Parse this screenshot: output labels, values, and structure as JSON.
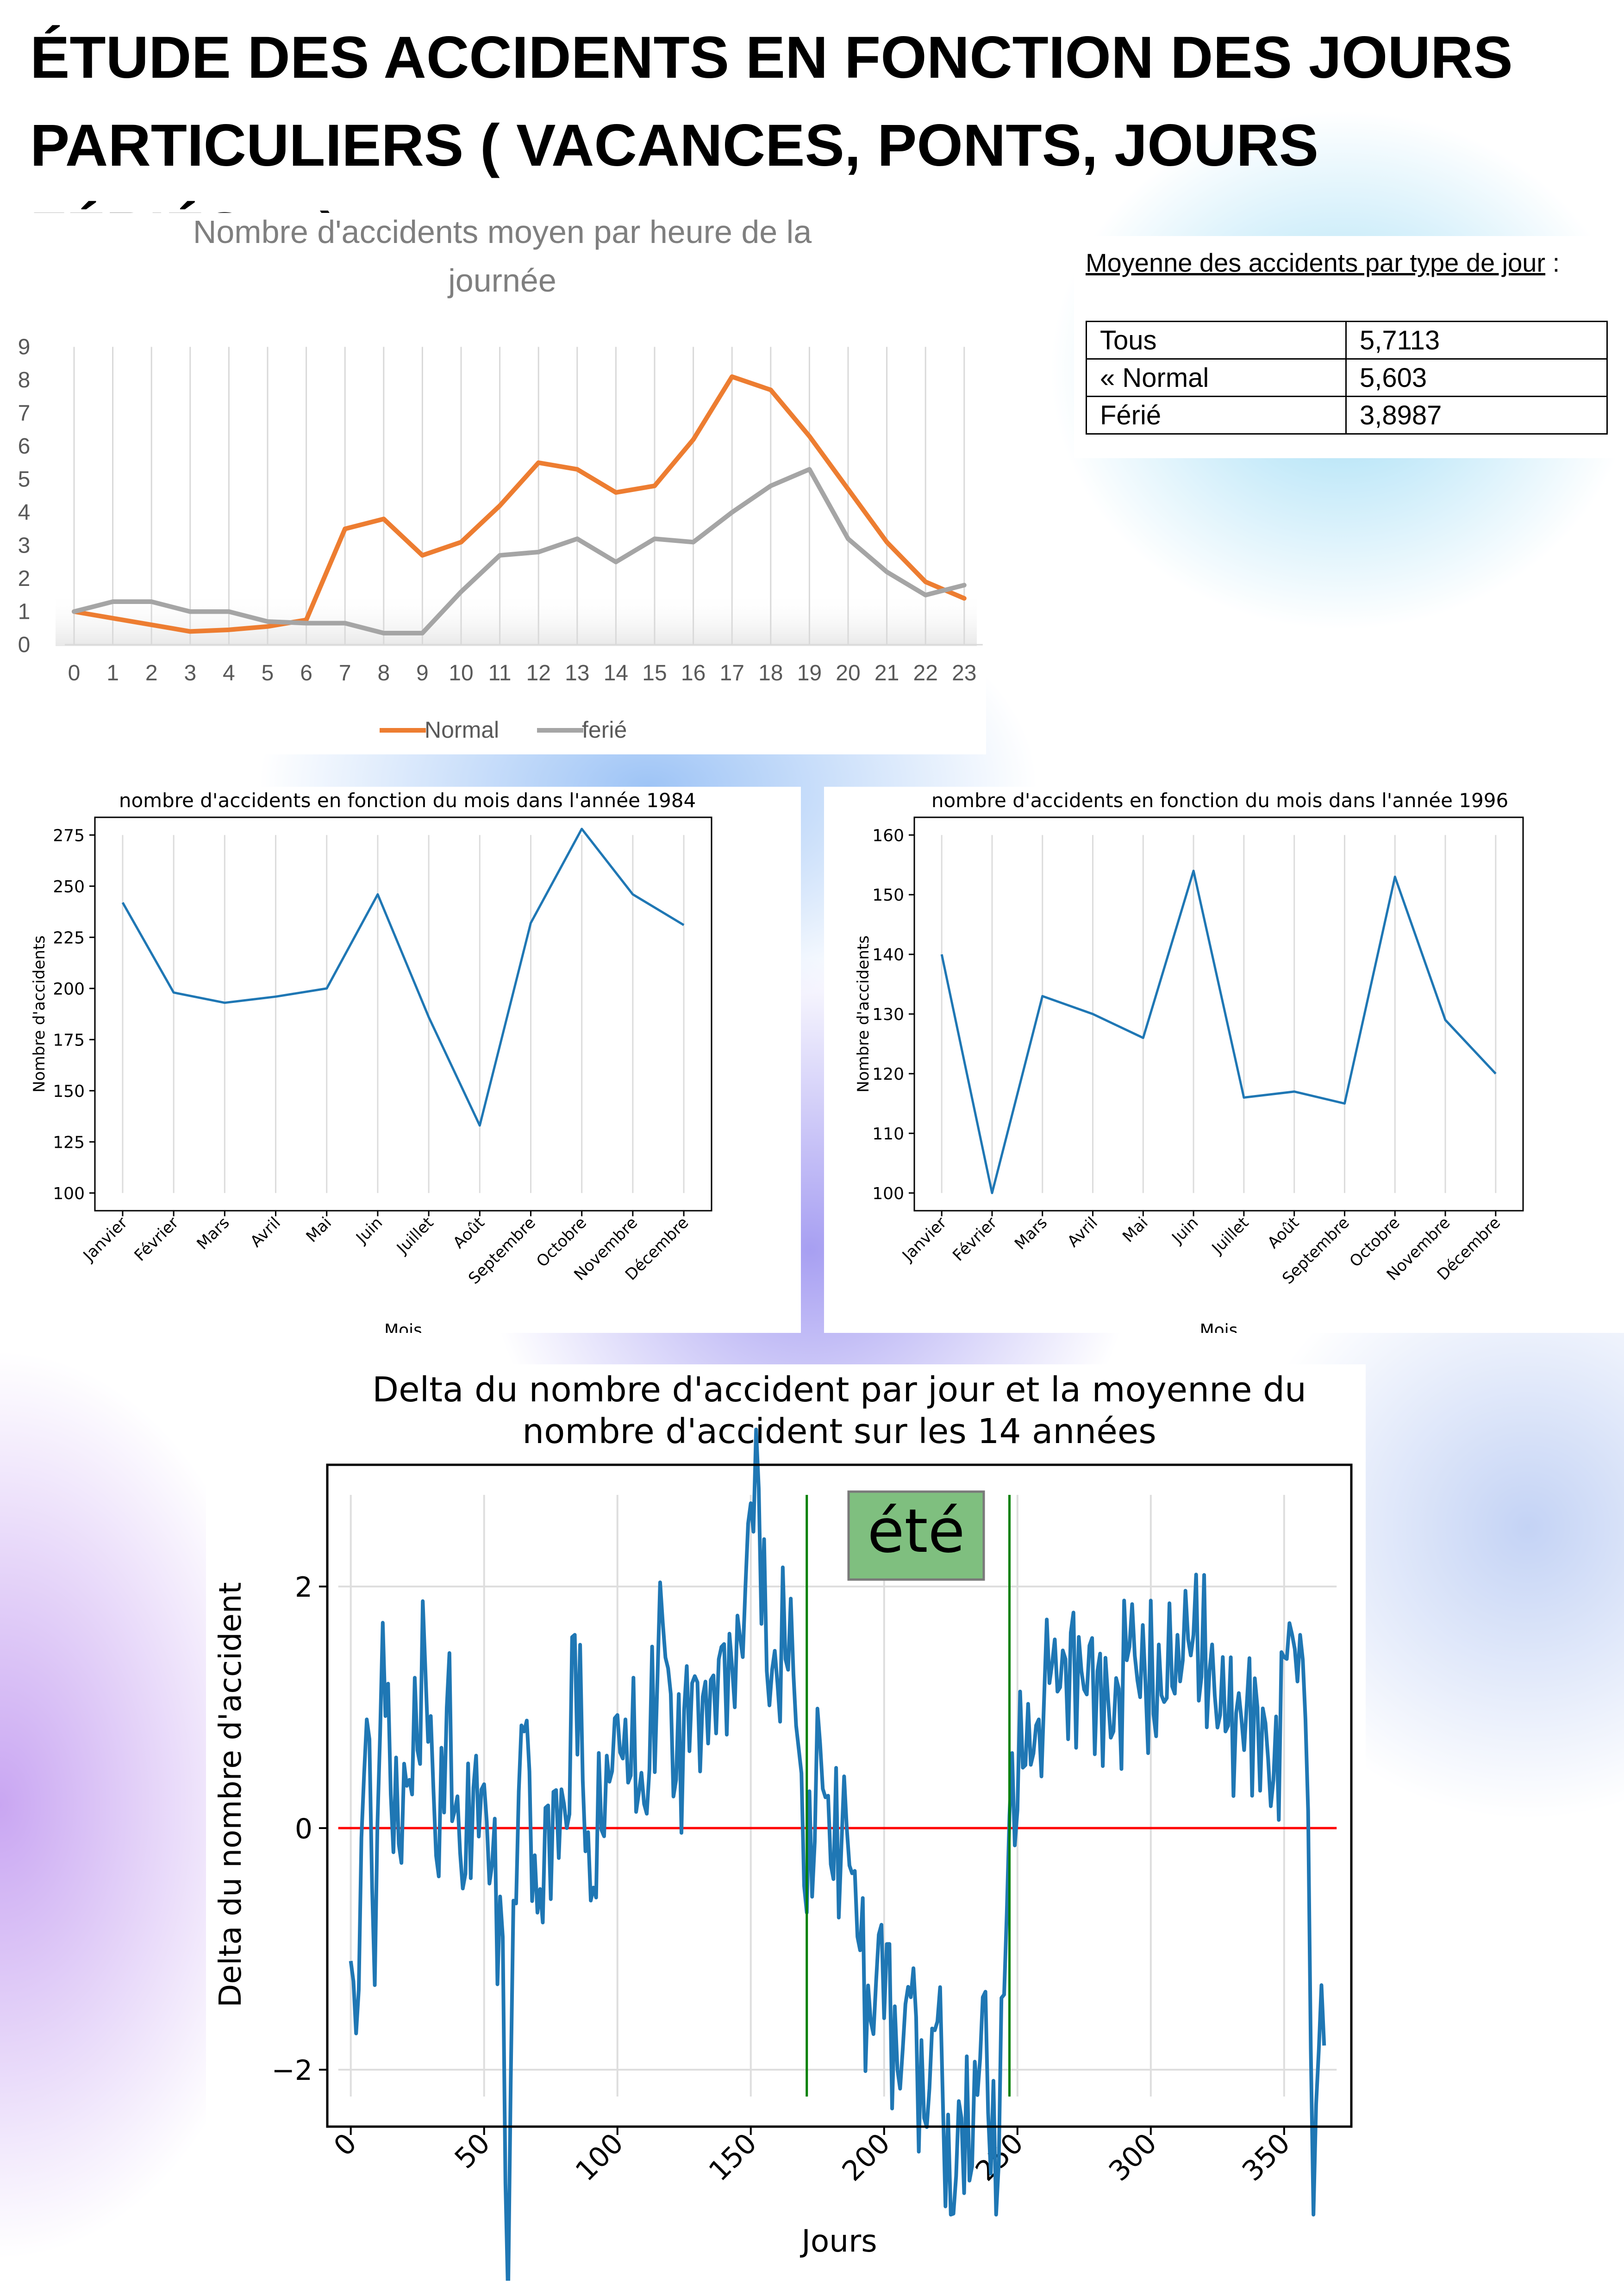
{
  "page": {
    "title": "ÉTUDE DES ACCIDENTS EN FONCTION DES JOURS PARTICULIERS ( VACANCES, PONTS, JOURS FÉRIÉS… )"
  },
  "avg_table": {
    "caption": "Moyenne des accidents par type de jour",
    "caption_suffix": " :",
    "rows": [
      {
        "label": "Tous",
        "value": "5,7113"
      },
      {
        "label": "« Normal",
        "value": "5,603"
      },
      {
        "label": "Férié",
        "value": "3,8987"
      }
    ]
  },
  "chart_data": [
    {
      "type": "line",
      "title": "Nombre d'accidents moyen par heure de la journée",
      "xlabel": "",
      "ylabel": "",
      "categories": [
        "0",
        "1",
        "2",
        "3",
        "4",
        "5",
        "6",
        "7",
        "8",
        "9",
        "10",
        "11",
        "12",
        "13",
        "14",
        "15",
        "16",
        "17",
        "18",
        "19",
        "20",
        "21",
        "22",
        "23"
      ],
      "ylim": [
        0,
        9
      ],
      "yticks": [
        "0",
        "1",
        "2",
        "3",
        "4",
        "5",
        "6",
        "7",
        "8",
        "9"
      ],
      "grid": "vertical",
      "legend": "bottom",
      "series": [
        {
          "name": "Normal",
          "color": "#ed7d31",
          "values": [
            1.0,
            0.8,
            0.6,
            0.4,
            0.45,
            0.55,
            0.75,
            3.5,
            3.8,
            2.7,
            3.1,
            4.2,
            5.5,
            5.3,
            4.6,
            4.8,
            6.2,
            8.1,
            7.7,
            6.3,
            4.7,
            3.1,
            1.9,
            1.4
          ]
        },
        {
          "name": "ferié",
          "color": "#a5a5a5",
          "values": [
            1.0,
            1.3,
            1.3,
            1.0,
            1.0,
            0.7,
            0.65,
            0.65,
            0.35,
            0.35,
            1.6,
            2.7,
            2.8,
            3.2,
            2.5,
            3.2,
            3.1,
            4.0,
            4.8,
            5.3,
            3.2,
            2.2,
            1.5,
            1.8
          ]
        }
      ]
    },
    {
      "type": "line",
      "title": "nombre d'accidents en fonction du mois dans l'année 1984",
      "xlabel": "Mois",
      "ylabel": "Nombre d'accidents",
      "categories": [
        "Janvier",
        "Février",
        "Mars",
        "Avril",
        "Mai",
        "Juin",
        "Juillet",
        "Août",
        "Septembre",
        "Octobre",
        "Novembre",
        "Décembre"
      ],
      "ylim": [
        100,
        275
      ],
      "yticks": [
        "100",
        "125",
        "150",
        "175",
        "200",
        "225",
        "250",
        "275"
      ],
      "grid": "vertical",
      "series": [
        {
          "color": "#1f77b4",
          "values": [
            242,
            198,
            193,
            196,
            200,
            246,
            186,
            133,
            232,
            278,
            246,
            231
          ]
        }
      ]
    },
    {
      "type": "line",
      "title": "nombre d'accidents en fonction du mois dans l'année 1996",
      "xlabel": "Mois",
      "ylabel": "Nombre d'accidents",
      "categories": [
        "Janvier",
        "Février",
        "Mars",
        "Avril",
        "Mai",
        "Juin",
        "Juillet",
        "Août",
        "Septembre",
        "Octobre",
        "Novembre",
        "Décembre"
      ],
      "ylim": [
        100,
        160
      ],
      "yticks": [
        "100",
        "110",
        "120",
        "130",
        "140",
        "150",
        "160"
      ],
      "grid": "vertical",
      "series": [
        {
          "color": "#1f77b4",
          "values": [
            140,
            100,
            133,
            130,
            126,
            154,
            116,
            117,
            115,
            153,
            129,
            120
          ]
        }
      ]
    },
    {
      "type": "line",
      "title": "Delta du nombre d'accident par jour et la moyenne du nombre d'accident sur les 14 années",
      "xlabel": "Jours",
      "ylabel": "Delta du nombre d'accident",
      "xlim": [
        0,
        365
      ],
      "xticks": [
        "0",
        "50",
        "100",
        "150",
        "200",
        "250",
        "300",
        "350"
      ],
      "ylim": [
        -4,
        4
      ],
      "yticks": [
        "−4",
        "−2",
        "0",
        "2",
        "4"
      ],
      "grid": "both",
      "baseline": {
        "y": 0,
        "color": "#ff0000"
      },
      "markers": [
        {
          "x": 171,
          "color": "#008000"
        },
        {
          "x": 247,
          "color": "#008000"
        }
      ],
      "annotation": {
        "text": "été",
        "color": "#7fbf7f"
      },
      "series": [
        {
          "color": "#1f77b4",
          "keypoints": [
            [
              0,
              -1.1
            ],
            [
              2,
              -1.7
            ],
            [
              6,
              0.9
            ],
            [
              9,
              -1.3
            ],
            [
              12,
              1.7
            ],
            [
              16,
              -0.2
            ],
            [
              22,
              0.4
            ],
            [
              28,
              1.3
            ],
            [
              33,
              -0.4
            ],
            [
              36,
              1.0
            ],
            [
              42,
              -0.5
            ],
            [
              47,
              0.6
            ],
            [
              53,
              -0.3
            ],
            [
              57,
              -0.9
            ],
            [
              59,
              -3.9
            ],
            [
              61,
              -0.6
            ],
            [
              65,
              0.8
            ],
            [
              70,
              -0.7
            ],
            [
              76,
              0.3
            ],
            [
              81,
              0.0
            ],
            [
              84,
              1.6
            ],
            [
              90,
              -0.6
            ],
            [
              96,
              0.6
            ],
            [
              103,
              0.9
            ],
            [
              110,
              0.2
            ],
            [
              117,
              1.7
            ],
            [
              122,
              0.4
            ],
            [
              128,
              1.2
            ],
            [
              134,
              0.7
            ],
            [
              139,
              1.5
            ],
            [
              144,
              1.0
            ],
            [
              148,
              2.0
            ],
            [
              152,
              3.3
            ],
            [
              156,
              1.3
            ],
            [
              160,
              1.2
            ],
            [
              165,
              1.9
            ],
            [
              171,
              -0.7
            ],
            [
              176,
              0.7
            ],
            [
              180,
              -0.3
            ],
            [
              186,
              0.0
            ],
            [
              190,
              -0.9
            ],
            [
              195,
              -1.6
            ],
            [
              199,
              -0.8
            ],
            [
              205,
              -2.0
            ],
            [
              210,
              -1.4
            ],
            [
              215,
              -2.4
            ],
            [
              220,
              -1.6
            ],
            [
              225,
              -3.2
            ],
            [
              229,
              -2.4
            ],
            [
              233,
              -2.8
            ],
            [
              237,
              -1.4
            ],
            [
              242,
              -3.2
            ],
            [
              247,
              0.1
            ],
            [
              252,
              0.5
            ],
            [
              258,
              0.9
            ],
            [
              262,
              1.2
            ],
            [
              268,
              1.4
            ],
            [
              274,
              1.3
            ],
            [
              280,
              1.3
            ],
            [
              286,
              0.8
            ],
            [
              292,
              1.5
            ],
            [
              298,
              1.2
            ],
            [
              304,
              1.1
            ],
            [
              310,
              1.6
            ],
            [
              316,
              1.6
            ],
            [
              322,
              1.3
            ],
            [
              328,
              0.8
            ],
            [
              334,
              0.9
            ],
            [
              340,
              1.0
            ],
            [
              346,
              0.4
            ],
            [
              351,
              1.4
            ],
            [
              356,
              1.6
            ],
            [
              358,
              0.9
            ],
            [
              361,
              -3.2
            ],
            [
              364,
              -1.3
            ],
            [
              365,
              -1.8
            ]
          ]
        }
      ]
    }
  ]
}
